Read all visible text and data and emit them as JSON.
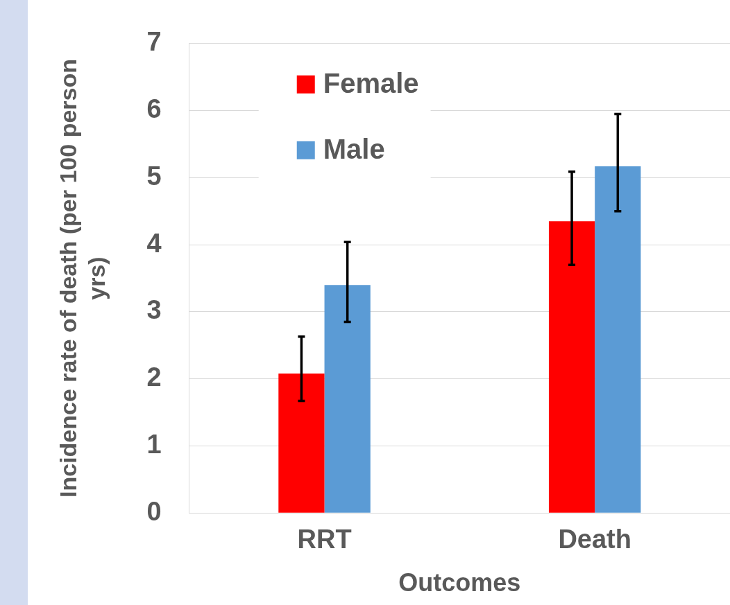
{
  "chart_data": {
    "type": "bar",
    "xlabel": "Outcomes",
    "ylabel": "Incidence rate of death (per 100 person yrs)",
    "categories": [
      "RRT",
      "Death"
    ],
    "series": [
      {
        "name": "Female",
        "color": "#ff0000",
        "values": [
          2.08,
          4.35
        ],
        "errors": [
          [
            1.67,
            2.63
          ],
          [
            3.7,
            5.09
          ]
        ]
      },
      {
        "name": "Male",
        "color": "#5b9bd5",
        "values": [
          3.4,
          5.17
        ],
        "errors": [
          [
            2.85,
            4.04
          ],
          [
            4.5,
            5.95
          ]
        ]
      }
    ],
    "ylim": [
      0,
      7
    ],
    "yticks": [
      0,
      1,
      2,
      3,
      4,
      5,
      6,
      7
    ],
    "grid": "y",
    "legend": "top left"
  }
}
